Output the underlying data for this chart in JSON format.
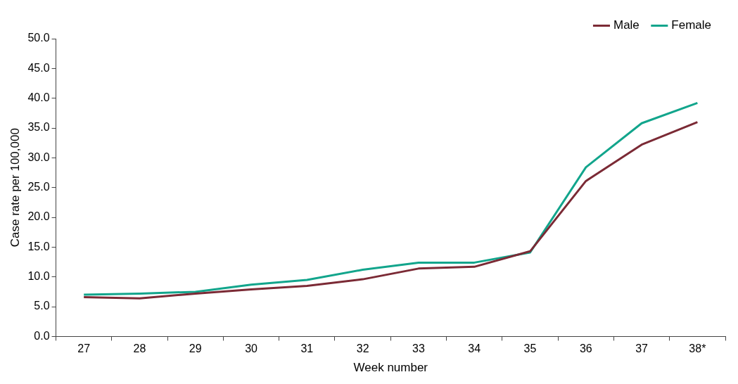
{
  "chart_data": {
    "type": "line",
    "xlabel": "Week number",
    "ylabel": "Case rate per 100,000",
    "categories": [
      "27",
      "28",
      "29",
      "30",
      "31",
      "32",
      "33",
      "34",
      "35",
      "36",
      "37",
      "38*"
    ],
    "series": [
      {
        "name": "Male",
        "color": "#7b2a35",
        "values": [
          6.6,
          6.4,
          7.2,
          7.9,
          8.5,
          9.6,
          11.4,
          11.7,
          14.3,
          26.1,
          32.2,
          36.0
        ]
      },
      {
        "name": "Female",
        "color": "#12a58c",
        "values": [
          7.0,
          7.2,
          7.5,
          8.7,
          9.5,
          11.2,
          12.4,
          12.4,
          14.1,
          28.4,
          35.8,
          39.2
        ]
      }
    ],
    "ylim": [
      0,
      50
    ],
    "yticks": [
      {
        "value": 0,
        "label": "0.0"
      },
      {
        "value": 5,
        "label": "5.0"
      },
      {
        "value": 10,
        "label": "10.0"
      },
      {
        "value": 15,
        "label": "15.0"
      },
      {
        "value": 20,
        "label": "20.0"
      },
      {
        "value": 25,
        "label": "25.0"
      },
      {
        "value": 30,
        "label": "30.0"
      },
      {
        "value": 35,
        "label": "35.0"
      },
      {
        "value": 40,
        "label": "40.0"
      },
      {
        "value": 45,
        "label": "45.0"
      },
      {
        "value": 50,
        "label": "50.0"
      }
    ],
    "grid": false,
    "legend": "top right",
    "marker": "none",
    "line_style": "solid"
  }
}
